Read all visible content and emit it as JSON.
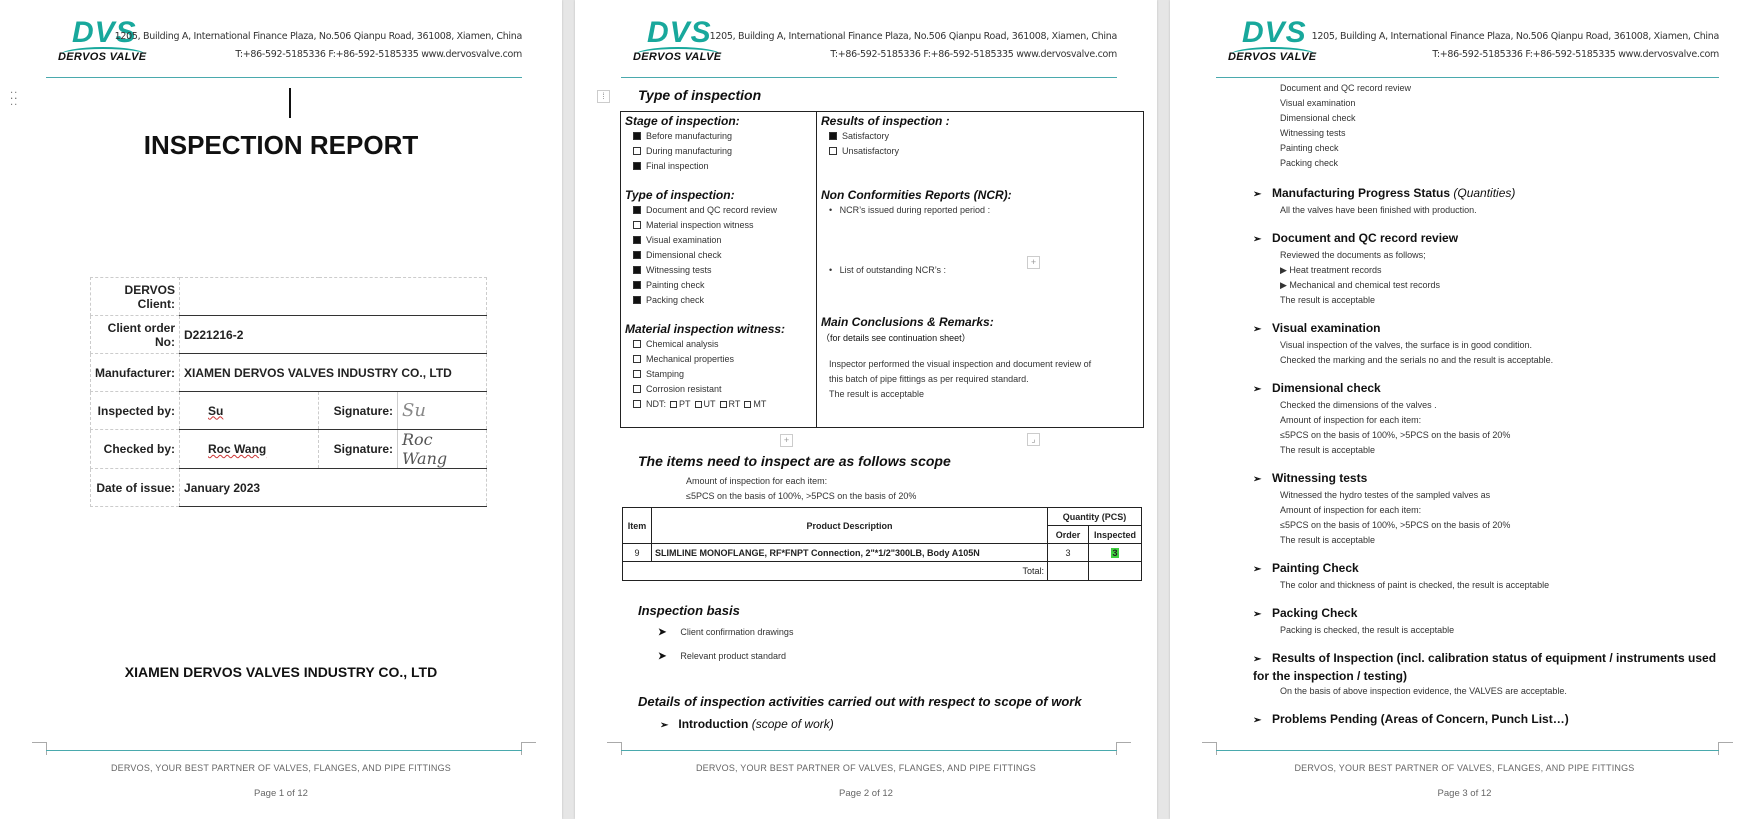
{
  "header": {
    "logo_mark": "DVS",
    "logo_name": "DERVOS VALVE",
    "address": "1205, Building A, International Finance Plaza, No.506 Qianpu Road, 361008, Xiamen, China",
    "contact": "T:+86-592-5185336   F:+86-592-5185335   www.dervosvalve.com",
    "accent_color": "#18a89c"
  },
  "footer": {
    "slogan": "DERVOS, YOUR BEST PARTNER OF VALVES, FLANGES, AND PIPE FITTINGS",
    "page1": "Page 1 of 12",
    "page2": "Page 2 of 12",
    "page3": "Page 3 of 12"
  },
  "page1": {
    "title": "INSPECTION REPORT",
    "client_label": "DERVOS Client:",
    "client_value": "",
    "order_label": "Client order No:",
    "order_value": "D221216-2",
    "manufacturer_label": "Manufacturer:",
    "manufacturer_value": "XIAMEN DERVOS VALVES INDUSTRY CO., LTD",
    "inspected_label": "Inspected by:",
    "inspected_value": "Su",
    "signature_label": "Signature:",
    "inspected_signature": "Su",
    "checked_label": "Checked by:",
    "checked_value": "Roc Wang",
    "checked_signature": "Roc Wang",
    "date_label": "Date of issue:",
    "date_value": "January 2023",
    "company": "XIAMEN DERVOS VALVES INDUSTRY CO., LTD"
  },
  "page2": {
    "heading": "Type of inspection",
    "stage_title": "Stage of inspection:",
    "stage": [
      {
        "label": "Before manufacturing",
        "checked": true
      },
      {
        "label": "During manufacturing",
        "checked": false
      },
      {
        "label": "Final inspection",
        "checked": true
      }
    ],
    "type_title": "Type of inspection:",
    "types": [
      {
        "label": "Document and QC record review",
        "checked": true
      },
      {
        "label": "Material inspection witness",
        "checked": false
      },
      {
        "label": "Visual examination",
        "checked": true
      },
      {
        "label": "Dimensional check",
        "checked": true
      },
      {
        "label": "Witnessing tests",
        "checked": true
      },
      {
        "label": "Painting check",
        "checked": true
      },
      {
        "label": "Packing check",
        "checked": true
      }
    ],
    "material_title": "Material inspection witness:",
    "material": [
      {
        "label": "Chemical analysis",
        "checked": false
      },
      {
        "label": "Mechanical properties",
        "checked": false
      },
      {
        "label": "Stamping",
        "checked": false
      },
      {
        "label": "Corrosion resistant",
        "checked": false
      }
    ],
    "ndt_label": "NDT:",
    "ndt_options": [
      "PT",
      "UT",
      "RT",
      "MT"
    ],
    "results_title": "Results of inspection :",
    "results": [
      {
        "label": "Satisfactory",
        "checked": true
      },
      {
        "label": "Unsatisfactory",
        "checked": false
      }
    ],
    "ncr_title": "Non Conformities Reports (NCR):",
    "ncr_issued": "NCR’s issued during reported period :",
    "ncr_outstanding": "List of outstanding NCR’s :",
    "conclusions_title": "Main Conclusions & Remarks:",
    "conclusions_note": "（for details see continuation sheet）",
    "conclusions": [
      "Inspector performed the visual inspection and document review of",
      "this batch of pipe fittings as per required standard.",
      "The result is acceptable"
    ],
    "scope_heading": "The items need to inspect are as follows scope",
    "amount_line1": "Amount of inspection for each item:",
    "amount_line2": "≤5PCS on the basis of 100%,    >5PCS on the basis of 20%",
    "table": {
      "col_item": "Item",
      "col_desc": "Product Description",
      "col_qty": "Quantity (PCS)",
      "col_order": "Order",
      "col_inspected": "Inspected",
      "rows": [
        {
          "item": "9",
          "desc": "SLIMLINE MONOFLANGE, RF*FNPT Connection, 2\"*1/2\"300LB, Body A105N",
          "order": "3",
          "inspected": "3"
        }
      ],
      "total_label": "Total:",
      "highlight_color": "#3fd13f"
    },
    "basis_heading": "Inspection basis",
    "basis": [
      "Client confirmation drawings",
      "Relevant product standard"
    ],
    "details_heading": "Details of inspection activities carried out with respect to scope of work",
    "intro_label": "Introduction",
    "intro_note": "(scope of work)"
  },
  "page3": {
    "intro_list": [
      "Document and QC record review",
      "Visual examination",
      "Dimensional check",
      "Witnessing tests",
      "Painting check",
      "Packing check"
    ],
    "sections": [
      {
        "title": "Manufacturing Progress Status",
        "note": "(Quantities)",
        "lines": [
          "All the valves have been finished with production."
        ]
      },
      {
        "title": "Document and QC record review",
        "lines": [
          "Reviewed the documents as follows;",
          "▶ Heat treatment records",
          "▶ Mechanical and chemical test records",
          "The result is acceptable"
        ]
      },
      {
        "title": "Visual examination",
        "lines": [
          "Visual inspection of the valves, the surface is in good condition.",
          "Checked the marking and the serials no and the result is acceptable."
        ]
      },
      {
        "title": "Dimensional check",
        "lines": [
          "Checked the dimensions of the valves .",
          "Amount of inspection for each item:",
          "≤5PCS on the basis of 100%,    >5PCS on the basis of 20%",
          "The result is acceptable"
        ]
      },
      {
        "title": "Witnessing tests",
        "lines": [
          "Witnessed the hydro testes of the sampled valves as",
          "Amount of inspection for each item:",
          "≤5PCS on the basis of 100%,    >5PCS on the basis of 20%",
          "The result is acceptable"
        ]
      },
      {
        "title": "Painting Check",
        "lines": [
          "The color and thickness of paint is checked, the result is acceptable"
        ]
      },
      {
        "title": "Packing Check",
        "lines": [
          "Packing is checked, the result is acceptable"
        ]
      },
      {
        "title": "Results of Inspection (incl. calibration status of equipment / instruments used for the inspection / testing)",
        "lines": [
          "On the basis of above inspection evidence, the VALVES are acceptable."
        ]
      },
      {
        "title": "Problems Pending (Areas of Concern, Punch List…)",
        "lines": []
      }
    ]
  }
}
